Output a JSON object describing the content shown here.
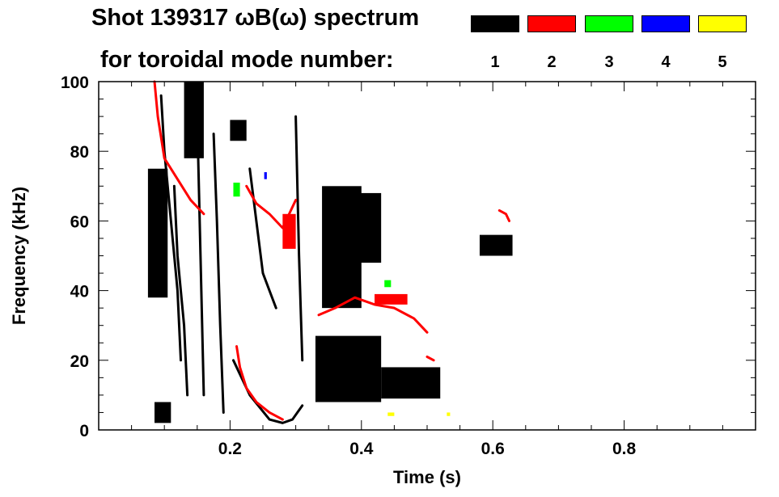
{
  "title": {
    "line1": "Shot 139317 ωB(ω) spectrum",
    "line2": "for toroidal mode number:"
  },
  "legend": [
    {
      "label": "1",
      "color": "#000000"
    },
    {
      "label": "2",
      "color": "#ff0000"
    },
    {
      "label": "3",
      "color": "#00ff00"
    },
    {
      "label": "4",
      "color": "#0000ff"
    },
    {
      "label": "5",
      "color": "#ffff00"
    }
  ],
  "chart_data": {
    "type": "heatmap",
    "title": "Shot 139317 ωB(ω) spectrum",
    "xlabel": "Time (s)",
    "ylabel": "Frequency (kHz)",
    "xlim": [
      0.0,
      1.0
    ],
    "ylim": [
      0,
      100
    ],
    "x_ticks": [
      0.2,
      0.4,
      0.6,
      0.8
    ],
    "x_tick_labels": [
      "0.2",
      "0.4",
      "0.6",
      "0.8"
    ],
    "y_ticks": [
      0,
      20,
      40,
      60,
      80,
      100
    ],
    "y_tick_labels": [
      "0",
      "20",
      "40",
      "60",
      "80",
      "100"
    ],
    "grid": false,
    "legend_position": "top-right",
    "series": [
      {
        "name": "1",
        "color": "#000000",
        "regions": [
          {
            "t": [
              0.075,
              0.105
            ],
            "f": [
              38,
              75
            ]
          },
          {
            "t": [
              0.085,
              0.11
            ],
            "f": [
              2,
              8
            ]
          },
          {
            "t": [
              0.13,
              0.16
            ],
            "f": [
              78,
              100
            ]
          },
          {
            "t": [
              0.2,
              0.225
            ],
            "f": [
              83,
              89
            ]
          },
          {
            "t": [
              0.33,
              0.43
            ],
            "f": [
              8,
              27
            ]
          },
          {
            "t": [
              0.43,
              0.52
            ],
            "f": [
              9,
              18
            ]
          },
          {
            "t": [
              0.34,
              0.4
            ],
            "f": [
              35,
              70
            ]
          },
          {
            "t": [
              0.395,
              0.43
            ],
            "f": [
              48,
              68
            ]
          },
          {
            "t": [
              0.58,
              0.63
            ],
            "f": [
              50,
              56
            ]
          }
        ],
        "lines": [
          {
            "t": [
              0.205,
              0.23,
              0.26,
              0.28,
              0.295,
              0.31
            ],
            "f": [
              20,
              10,
              3,
              2,
              3,
              7
            ]
          },
          {
            "t": [
              0.095,
              0.1,
              0.11,
              0.12,
              0.125
            ],
            "f": [
              96,
              80,
              60,
              40,
              20
            ]
          },
          {
            "t": [
              0.115,
              0.12,
              0.13,
              0.135
            ],
            "f": [
              70,
              50,
              30,
              10
            ]
          },
          {
            "t": [
              0.15,
              0.155,
              0.16
            ],
            "f": [
              90,
              50,
              10
            ]
          },
          {
            "t": [
              0.175,
              0.18,
              0.185,
              0.19
            ],
            "f": [
              85,
              60,
              30,
              5
            ]
          },
          {
            "t": [
              0.23,
              0.24,
              0.25,
              0.26,
              0.27
            ],
            "f": [
              75,
              60,
              45,
              40,
              35
            ]
          },
          {
            "t": [
              0.3,
              0.305,
              0.31
            ],
            "f": [
              90,
              50,
              20
            ]
          }
        ]
      },
      {
        "name": "2",
        "color": "#ff0000",
        "regions": [
          {
            "t": [
              0.28,
              0.3
            ],
            "f": [
              52,
              62
            ]
          },
          {
            "t": [
              0.42,
              0.47
            ],
            "f": [
              36,
              39
            ]
          }
        ],
        "lines": [
          {
            "t": [
              0.085,
              0.09,
              0.1,
              0.12,
              0.14,
              0.16
            ],
            "f": [
              100,
              90,
              78,
              72,
              66,
              62
            ]
          },
          {
            "t": [
              0.21,
              0.215,
              0.225,
              0.24,
              0.26,
              0.28
            ],
            "f": [
              24,
              18,
              12,
              8,
              5,
              3
            ]
          },
          {
            "t": [
              0.225,
              0.24,
              0.26,
              0.28,
              0.3
            ],
            "f": [
              70,
              65,
              62,
              58,
              66
            ]
          },
          {
            "t": [
              0.335,
              0.36,
              0.39,
              0.42,
              0.45,
              0.48,
              0.5
            ],
            "f": [
              33,
              35,
              38,
              36,
              35,
              32,
              28
            ]
          },
          {
            "t": [
              0.61,
              0.62,
              0.625
            ],
            "f": [
              63,
              62,
              60
            ]
          },
          {
            "t": [
              0.5,
              0.51
            ],
            "f": [
              21,
              20
            ]
          }
        ]
      },
      {
        "name": "3",
        "color": "#00ff00",
        "regions": [
          {
            "t": [
              0.205,
              0.215
            ],
            "f": [
              67,
              71
            ]
          },
          {
            "t": [
              0.435,
              0.445
            ],
            "f": [
              41,
              43
            ]
          }
        ],
        "lines": []
      },
      {
        "name": "4",
        "color": "#0000ff",
        "regions": [
          {
            "t": [
              0.252,
              0.256
            ],
            "f": [
              72,
              74
            ]
          }
        ],
        "lines": []
      },
      {
        "name": "5",
        "color": "#ffff00",
        "regions": [
          {
            "t": [
              0.44,
              0.45
            ],
            "f": [
              4,
              5
            ]
          },
          {
            "t": [
              0.53,
              0.535
            ],
            "f": [
              4,
              5
            ]
          }
        ],
        "lines": []
      }
    ]
  }
}
